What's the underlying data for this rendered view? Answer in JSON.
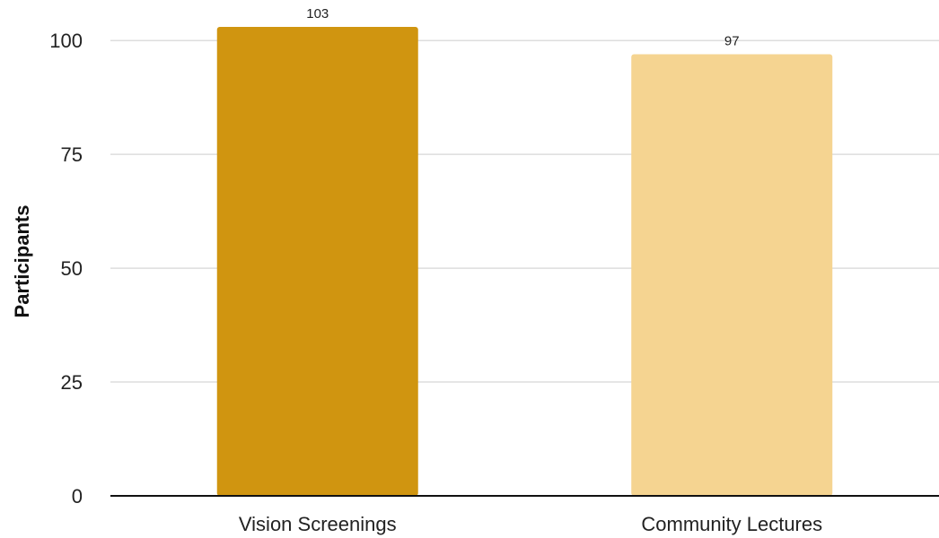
{
  "chart_data": {
    "type": "bar",
    "title": "",
    "xlabel": "",
    "ylabel": "Participants",
    "categories": [
      "Vision Screenings",
      "Community Lectures"
    ],
    "values": [
      103,
      97
    ],
    "data_labels": [
      "103",
      "97"
    ],
    "ylim": [
      0,
      103
    ],
    "yticks": [
      0,
      25,
      50,
      75,
      100
    ],
    "ytick_labels": [
      "0",
      "25",
      "50",
      "75",
      "100"
    ],
    "grid": true,
    "legend": "none",
    "colors": [
      "#D09510",
      "#F5D491"
    ]
  }
}
